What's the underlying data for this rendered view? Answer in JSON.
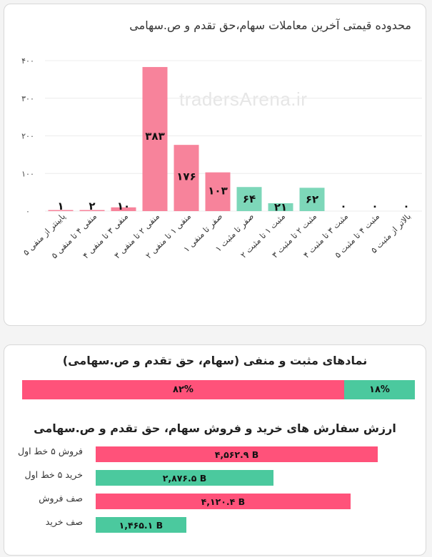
{
  "chart_data": [
    {
      "type": "bar",
      "title": "محدوده قیمتی آخرین معاملات سهام،حق تقدم و ص.سهامی",
      "categories": [
        "پایینتر از منفی ۵",
        "منفی ۴ تا منفی ۵",
        "منفی ۳ تا منفی ۴",
        "منفی ۲ تا منفی ۳",
        "منفی ۱ تا منفی ۲",
        "صفر تا منفی ۱",
        "صفر تا مثبت ۱",
        "مثبت ۱ تا مثبت ۲",
        "مثبت ۲ تا مثبت ۳",
        "مثبت ۳ تا مثبت ۴",
        "مثبت ۴ تا مثبت ۵",
        "بالاتر از مثبت ۵"
      ],
      "values": [
        1,
        2,
        10,
        383,
        176,
        103,
        64,
        21,
        62,
        0,
        0,
        0
      ],
      "value_labels": [
        "۱",
        "۲",
        "۱۰",
        "۳۸۳",
        "۱۷۶",
        "۱۰۳",
        "۶۴",
        "۲۱",
        "۶۲",
        "۰",
        "۰",
        "۰"
      ],
      "bar_colors": [
        "#f7839b",
        "#f7839b",
        "#f7839b",
        "#f7839b",
        "#f7839b",
        "#f7839b",
        "#7dd7b9",
        "#7dd7b9",
        "#7dd7b9",
        "#7dd7b9",
        "#7dd7b9",
        "#7dd7b9"
      ],
      "yticks": [
        0,
        100,
        200,
        300,
        400
      ],
      "ytick_labels": [
        "۰",
        "۱۰۰",
        "۲۰۰",
        "۳۰۰",
        "۴۰۰"
      ],
      "ylim": [
        0,
        400
      ],
      "grid": true
    },
    {
      "type": "bar",
      "title": "نمادهای مثبت و منفی (سهام، حق تقدم و ص.سهامی)",
      "stacked": true,
      "orientation": "horizontal",
      "series": [
        {
          "value": 82,
          "label": "۸۲%",
          "color": "#ff527a"
        },
        {
          "value": 18,
          "label": "۱۸%",
          "color": "#4bc99e"
        }
      ]
    },
    {
      "type": "bar",
      "orientation": "horizontal",
      "title": "ارزش سفارش های خرید و فروش سهام، حق تقدم و ص.سهامی",
      "categories": [
        "فروش ۵ خط اول",
        "خرید ۵ خط اول",
        "صف فروش",
        "صف خرید"
      ],
      "values": [
        4562.9,
        2876.5,
        4120.4,
        1465.1
      ],
      "value_labels": [
        "۴,۵۶۲.۹ B",
        "۲,۸۷۶.۵ B",
        "۴,۱۲۰.۴ B",
        "۱,۴۶۵.۱ B"
      ],
      "bar_colors": [
        "#ff527a",
        "#4bc99e",
        "#ff527a",
        "#4bc99e"
      ],
      "unit": "B"
    }
  ],
  "watermark": "tradersArena.ir"
}
